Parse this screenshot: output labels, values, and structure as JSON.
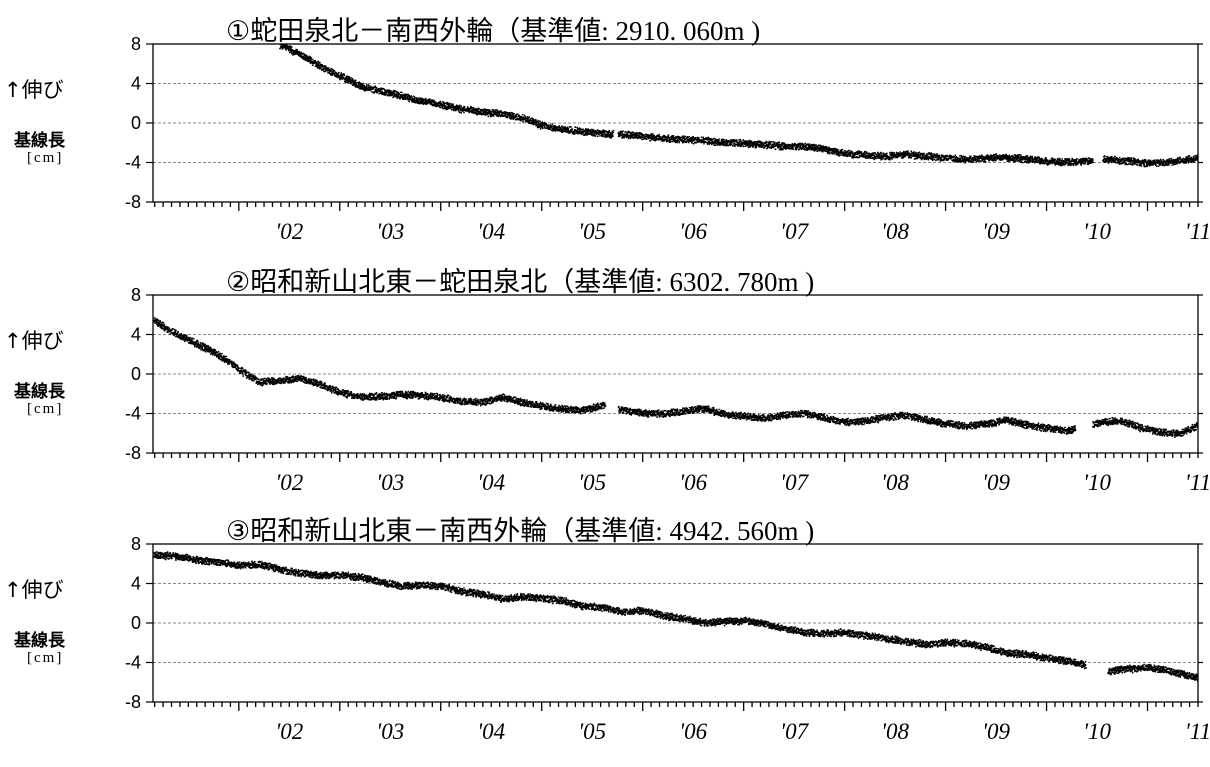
{
  "chart_data": [
    {
      "type": "scatter",
      "title_circle": "①",
      "title_main": "蛇田泉北－南西外輪（基準値",
      "title_value": ": 2910. 060m )",
      "ylabel_top": "↑伸び",
      "ylabel_mid": "基線長",
      "ylabel_unit": "[cm]",
      "ylim": [
        -8,
        8
      ],
      "yticks": [
        "8",
        "4",
        "0",
        "-4",
        "-8"
      ],
      "xlim": [
        2001.15,
        2011.5
      ],
      "xtick_labels": [
        "'02",
        "'03",
        "'04",
        "'05",
        "'06",
        "'07",
        "'08",
        "'09",
        "'10",
        "'11"
      ],
      "grid": true,
      "gaps": [
        [
          2005.7,
          2005.75
        ],
        [
          2010.45,
          2010.55
        ]
      ],
      "series": [
        {
          "x": [
            2002.4,
            2002.6,
            2002.8,
            2003.0,
            2003.2,
            2003.4,
            2003.6,
            2003.8,
            2004.0,
            2004.2,
            2004.4,
            2004.6,
            2004.8,
            2005.0,
            2005.2,
            2005.4,
            2005.6,
            2005.8,
            2006.0,
            2006.2,
            2006.4,
            2006.6,
            2006.8,
            2007.0,
            2007.2,
            2007.4,
            2007.6,
            2007.8,
            2008.0,
            2008.2,
            2008.4,
            2008.6,
            2008.8,
            2009.0,
            2009.2,
            2009.4,
            2009.6,
            2009.8,
            2010.0,
            2010.2,
            2010.4,
            2010.6,
            2010.8,
            2011.0,
            2011.2,
            2011.5
          ],
          "y": [
            8.0,
            7.0,
            5.8,
            4.8,
            3.8,
            3.3,
            2.8,
            2.3,
            1.9,
            1.5,
            1.2,
            1.0,
            0.6,
            -0.2,
            -0.6,
            -0.8,
            -1.0,
            -1.1,
            -1.3,
            -1.5,
            -1.6,
            -1.7,
            -1.9,
            -2.0,
            -2.1,
            -2.3,
            -2.3,
            -2.6,
            -3.0,
            -3.2,
            -3.3,
            -3.1,
            -3.3,
            -3.5,
            -3.6,
            -3.5,
            -3.4,
            -3.6,
            -3.8,
            -3.9,
            -3.8,
            -3.6,
            -3.8,
            -4.0,
            -3.9,
            -3.5
          ]
        }
      ]
    },
    {
      "type": "scatter",
      "title_circle": "②",
      "title_main": "昭和新山北東－蛇田泉北（基準値",
      "title_value": ": 6302. 780m )",
      "ylabel_top": "↑伸び",
      "ylabel_mid": "基線長",
      "ylabel_unit": "[cm]",
      "ylim": [
        -8,
        8
      ],
      "yticks": [
        "8",
        "4",
        "0",
        "-4",
        "-8"
      ],
      "xlim": [
        2001.15,
        2011.5
      ],
      "xtick_labels": [
        "'02",
        "'03",
        "'04",
        "'05",
        "'06",
        "'07",
        "'08",
        "'09",
        "'10",
        "'11"
      ],
      "grid": true,
      "gaps": [
        [
          2005.62,
          2005.75
        ],
        [
          2010.28,
          2010.45
        ]
      ],
      "series": [
        {
          "x": [
            2001.15,
            2001.3,
            2001.5,
            2001.7,
            2001.9,
            2002.0,
            2002.1,
            2002.2,
            2002.4,
            2002.6,
            2002.8,
            2003.0,
            2003.2,
            2003.4,
            2003.6,
            2003.8,
            2004.0,
            2004.2,
            2004.4,
            2004.6,
            2004.8,
            2005.0,
            2005.2,
            2005.4,
            2005.6,
            2005.8,
            2006.0,
            2006.2,
            2006.4,
            2006.6,
            2006.8,
            2007.0,
            2007.2,
            2007.4,
            2007.6,
            2007.8,
            2008.0,
            2008.2,
            2008.4,
            2008.6,
            2008.8,
            2009.0,
            2009.2,
            2009.4,
            2009.6,
            2009.8,
            2010.0,
            2010.2,
            2010.5,
            2010.7,
            2010.9,
            2011.1,
            2011.3,
            2011.5
          ],
          "y": [
            5.5,
            4.5,
            3.5,
            2.5,
            1.3,
            0.5,
            -0.2,
            -0.8,
            -0.6,
            -0.4,
            -1.0,
            -1.8,
            -2.3,
            -2.2,
            -2.0,
            -2.1,
            -2.3,
            -2.7,
            -2.8,
            -2.3,
            -2.8,
            -3.2,
            -3.5,
            -3.6,
            -3.1,
            -3.6,
            -3.9,
            -4.0,
            -3.7,
            -3.4,
            -4.0,
            -4.2,
            -4.4,
            -4.1,
            -3.9,
            -4.4,
            -4.8,
            -4.7,
            -4.3,
            -4.1,
            -4.6,
            -5.0,
            -5.2,
            -5.0,
            -4.6,
            -5.1,
            -5.4,
            -5.7,
            -4.9,
            -4.6,
            -5.3,
            -5.8,
            -6.0,
            -5.1
          ]
        }
      ]
    },
    {
      "type": "scatter",
      "title_circle": "③",
      "title_main": "昭和新山北東－南西外輪（基準値",
      "title_value": ": 4942. 560m )",
      "ylabel_top": "↑伸び",
      "ylabel_mid": "基線長",
      "ylabel_unit": "[cm]",
      "ylim": [
        -8,
        8
      ],
      "yticks": [
        "8",
        "4",
        "0",
        "-4",
        "-8"
      ],
      "xlim": [
        2001.15,
        2011.5
      ],
      "xtick_labels": [
        "'02",
        "'03",
        "'04",
        "'05",
        "'06",
        "'07",
        "'08",
        "'09",
        "'10",
        "'11"
      ],
      "grid": true,
      "gaps": [
        [
          2010.38,
          2010.6
        ]
      ],
      "series": [
        {
          "x": [
            2001.15,
            2001.4,
            2001.6,
            2001.8,
            2002.0,
            2002.2,
            2002.4,
            2002.6,
            2002.8,
            2003.0,
            2003.2,
            2003.4,
            2003.6,
            2003.8,
            2004.0,
            2004.2,
            2004.4,
            2004.6,
            2004.8,
            2005.0,
            2005.2,
            2005.4,
            2005.6,
            2005.8,
            2006.0,
            2006.2,
            2006.4,
            2006.6,
            2006.8,
            2007.0,
            2007.2,
            2007.4,
            2007.6,
            2007.8,
            2008.0,
            2008.2,
            2008.4,
            2008.6,
            2008.8,
            2009.0,
            2009.2,
            2009.4,
            2009.6,
            2009.8,
            2010.0,
            2010.2,
            2010.35,
            2010.6,
            2010.8,
            2011.0,
            2011.2,
            2011.5
          ],
          "y": [
            7.0,
            6.8,
            6.4,
            6.2,
            5.9,
            6.0,
            5.5,
            5.1,
            4.9,
            4.9,
            4.7,
            4.2,
            3.8,
            3.9,
            3.8,
            3.3,
            3.0,
            2.5,
            2.7,
            2.6,
            2.3,
            1.8,
            1.6,
            1.2,
            1.3,
            0.8,
            0.5,
            0.1,
            0.2,
            0.3,
            0.0,
            -0.5,
            -0.9,
            -1.0,
            -0.9,
            -1.2,
            -1.5,
            -1.8,
            -2.1,
            -1.9,
            -2.0,
            -2.4,
            -3.0,
            -3.1,
            -3.5,
            -3.8,
            -4.1,
            -4.8,
            -4.6,
            -4.4,
            -4.8,
            -5.5
          ]
        }
      ]
    }
  ]
}
